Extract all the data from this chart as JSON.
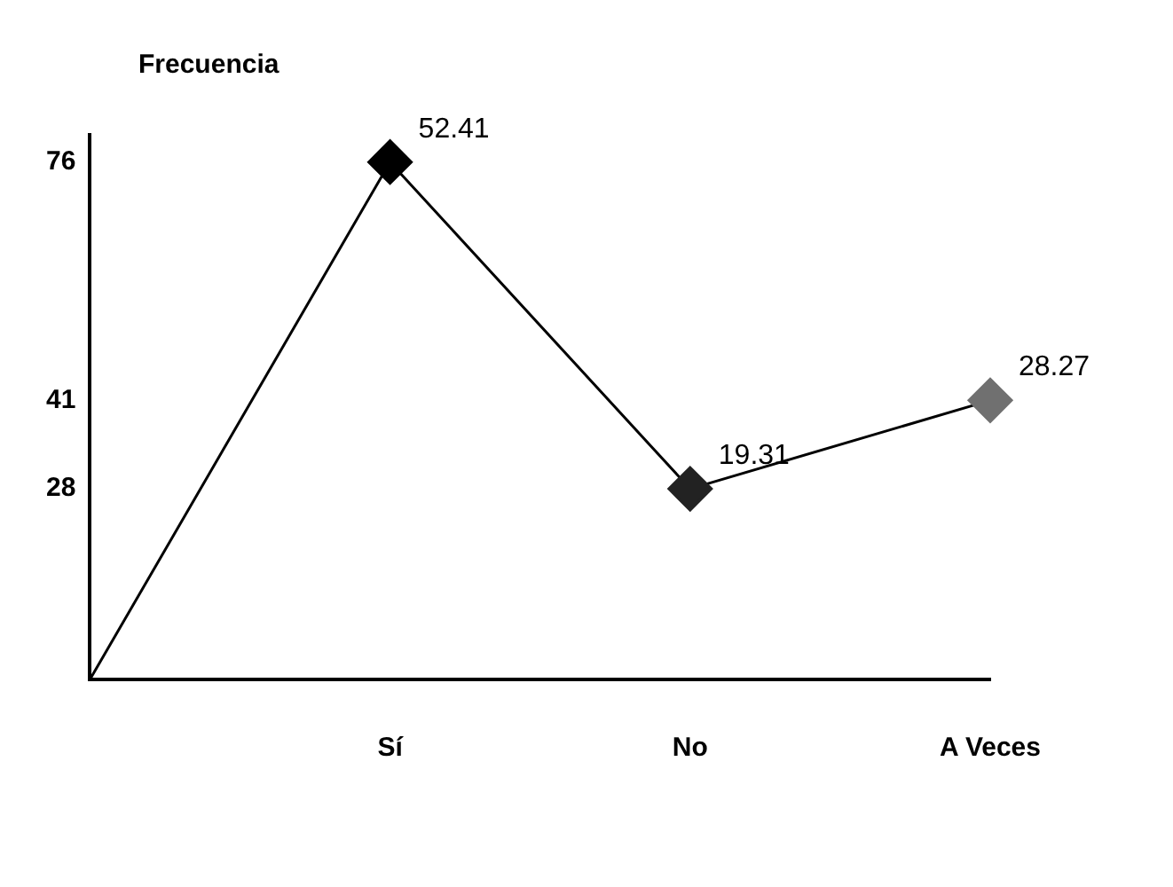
{
  "chart_data": {
    "type": "line",
    "ylabel": "Frecuencia",
    "categories": [
      null,
      "Sí",
      "No",
      "A Veces"
    ],
    "series": [
      {
        "color": "#000000",
        "values": [
          0,
          76,
          28,
          41
        ],
        "colors": [
          "#000000",
          "#000000",
          "#222222",
          "#707070"
        ]
      }
    ],
    "annotations": [
      {
        "text": "52.41",
        "x": "Sí",
        "y": 76
      },
      {
        "text": "19.31",
        "x": "No",
        "y": 28
      },
      {
        "text": "28.27",
        "x": "A Veces",
        "y": 41
      }
    ],
    "ylim": [
      0,
      80
    ],
    "yticks": [
      28,
      41,
      76
    ],
    "grid": false,
    "legend": false,
    "marker": "diamond",
    "line_style": "solid"
  }
}
